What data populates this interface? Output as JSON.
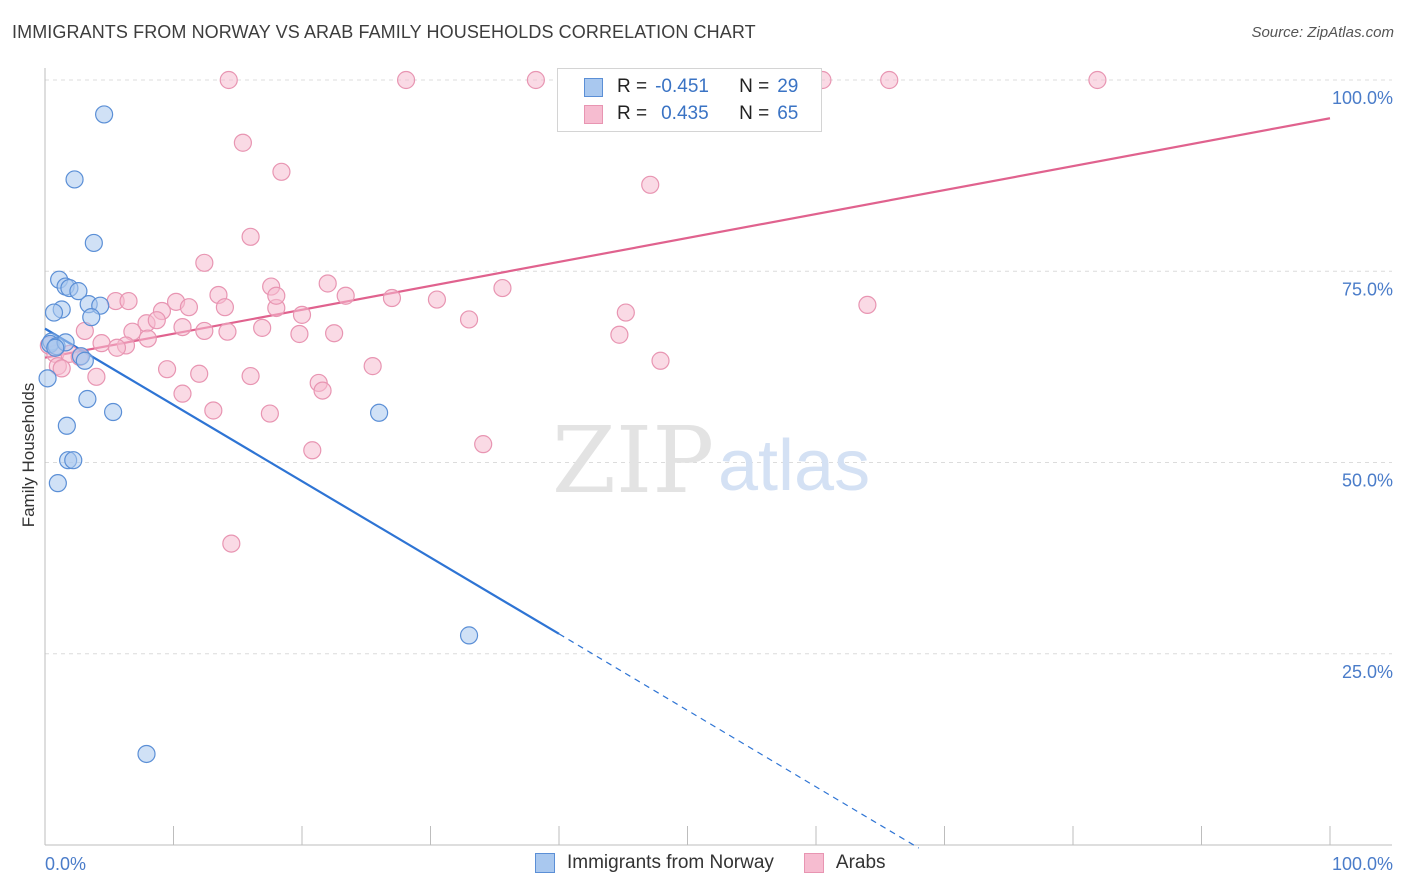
{
  "header": {
    "title": "IMMIGRANTS FROM NORWAY VS ARAB FAMILY HOUSEHOLDS CORRELATION CHART",
    "source": "Source: ZipAtlas.com"
  },
  "watermark": {
    "zip": "ZIP",
    "atlas": "atlas"
  },
  "legend": {
    "rows": [
      {
        "r_label": "R =",
        "r_value": "-0.451",
        "n_label": "N =",
        "n_value": "29"
      },
      {
        "r_label": "R =",
        "r_value": "0.435",
        "n_label": "N =",
        "n_value": "65"
      }
    ]
  },
  "bottom_legend": {
    "series1": "Immigrants from Norway",
    "series2": "Arabs"
  },
  "colors": {
    "norway_fill": "#a9c8ef",
    "norway_stroke": "#5b8fd6",
    "norway_line": "#2e74d4",
    "arab_fill": "#f6bcd0",
    "arab_stroke": "#e895b2",
    "arab_line": "#e0628e",
    "tick_label": "#4a7cc9",
    "grid": "#dcdcdc"
  },
  "chart_data": {
    "type": "scatter",
    "title": "IMMIGRANTS FROM NORWAY VS ARAB FAMILY HOUSEHOLDS CORRELATION CHART",
    "xlabel": "",
    "ylabel": "Family Households",
    "xlim": [
      0,
      100
    ],
    "ylim": [
      0,
      100
    ],
    "x_tick_labels": [
      "0.0%",
      "100.0%"
    ],
    "y_ticks": [
      25,
      50,
      75,
      100
    ],
    "y_tick_labels": [
      "25.0%",
      "50.0%",
      "75.0%",
      "100.0%"
    ],
    "grid": true,
    "series": [
      {
        "name": "Immigrants from Norway",
        "r": -0.451,
        "n": 29,
        "points": [
          [
            4.6,
            95.5
          ],
          [
            2.3,
            87.0
          ],
          [
            3.8,
            78.7
          ],
          [
            1.1,
            73.9
          ],
          [
            1.6,
            73.0
          ],
          [
            1.9,
            72.8
          ],
          [
            2.6,
            72.4
          ],
          [
            3.4,
            70.7
          ],
          [
            4.3,
            70.5
          ],
          [
            1.3,
            70.0
          ],
          [
            3.6,
            69.0
          ],
          [
            0.7,
            69.6
          ],
          [
            0.5,
            65.8
          ],
          [
            0.4,
            65.5
          ],
          [
            0.9,
            65.2
          ],
          [
            1.6,
            65.7
          ],
          [
            2.8,
            63.9
          ],
          [
            3.1,
            63.3
          ],
          [
            0.2,
            61.0
          ],
          [
            3.3,
            58.3
          ],
          [
            5.3,
            56.6
          ],
          [
            26.0,
            56.5
          ],
          [
            1.7,
            54.8
          ],
          [
            1.8,
            50.3
          ],
          [
            2.2,
            50.3
          ],
          [
            1.0,
            47.3
          ],
          [
            33.0,
            27.4
          ],
          [
            7.9,
            11.9
          ],
          [
            0.8,
            65.0
          ]
        ],
        "trend": {
          "x0": 0,
          "y0": 67.5,
          "x1": 40,
          "y1": 27.6,
          "dashed_to_x": 68,
          "dashed_to_y": -0.4
        }
      },
      {
        "name": "Arabs",
        "r": 0.435,
        "n": 65,
        "points": [
          [
            14.3,
            100.0
          ],
          [
            28.1,
            100.0
          ],
          [
            38.2,
            100.0
          ],
          [
            60.5,
            100.0
          ],
          [
            81.9,
            100.0
          ],
          [
            65.7,
            100.0
          ],
          [
            15.4,
            91.8
          ],
          [
            18.4,
            88.0
          ],
          [
            47.1,
            86.3
          ],
          [
            16.0,
            79.5
          ],
          [
            12.4,
            76.1
          ],
          [
            17.6,
            73.0
          ],
          [
            22.0,
            73.4
          ],
          [
            13.5,
            71.9
          ],
          [
            23.4,
            71.8
          ],
          [
            35.6,
            72.8
          ],
          [
            10.2,
            71.0
          ],
          [
            11.2,
            70.3
          ],
          [
            9.1,
            69.8
          ],
          [
            14.0,
            70.3
          ],
          [
            18.0,
            70.2
          ],
          [
            20.0,
            69.3
          ],
          [
            33.0,
            68.7
          ],
          [
            5.5,
            71.1
          ],
          [
            7.9,
            68.2
          ],
          [
            8.7,
            68.6
          ],
          [
            6.8,
            67.1
          ],
          [
            10.7,
            67.7
          ],
          [
            12.4,
            67.2
          ],
          [
            14.2,
            67.1
          ],
          [
            16.9,
            67.6
          ],
          [
            19.8,
            66.8
          ],
          [
            3.1,
            67.2
          ],
          [
            8.0,
            66.2
          ],
          [
            6.3,
            65.3
          ],
          [
            4.4,
            65.6
          ],
          [
            5.6,
            65.0
          ],
          [
            0.3,
            65.3
          ],
          [
            0.8,
            64.2
          ],
          [
            1.9,
            64.2
          ],
          [
            2.7,
            63.8
          ],
          [
            1.0,
            62.6
          ],
          [
            1.3,
            62.3
          ],
          [
            9.5,
            62.2
          ],
          [
            12.0,
            61.6
          ],
          [
            16.0,
            61.3
          ],
          [
            4.0,
            61.2
          ],
          [
            25.5,
            62.6
          ],
          [
            47.9,
            63.3
          ],
          [
            21.3,
            60.4
          ],
          [
            21.6,
            59.4
          ],
          [
            10.7,
            59.0
          ],
          [
            13.1,
            56.8
          ],
          [
            17.5,
            56.4
          ],
          [
            34.1,
            52.4
          ],
          [
            20.8,
            51.6
          ],
          [
            14.5,
            39.4
          ],
          [
            64.0,
            70.6
          ],
          [
            45.2,
            69.6
          ],
          [
            44.7,
            66.7
          ],
          [
            30.5,
            71.3
          ],
          [
            18.0,
            71.8
          ],
          [
            22.5,
            66.9
          ],
          [
            6.5,
            71.1
          ],
          [
            27.0,
            71.5
          ]
        ],
        "trend": {
          "x0": 0,
          "y0": 63.7,
          "x1": 100,
          "y1": 95.0
        }
      }
    ]
  }
}
